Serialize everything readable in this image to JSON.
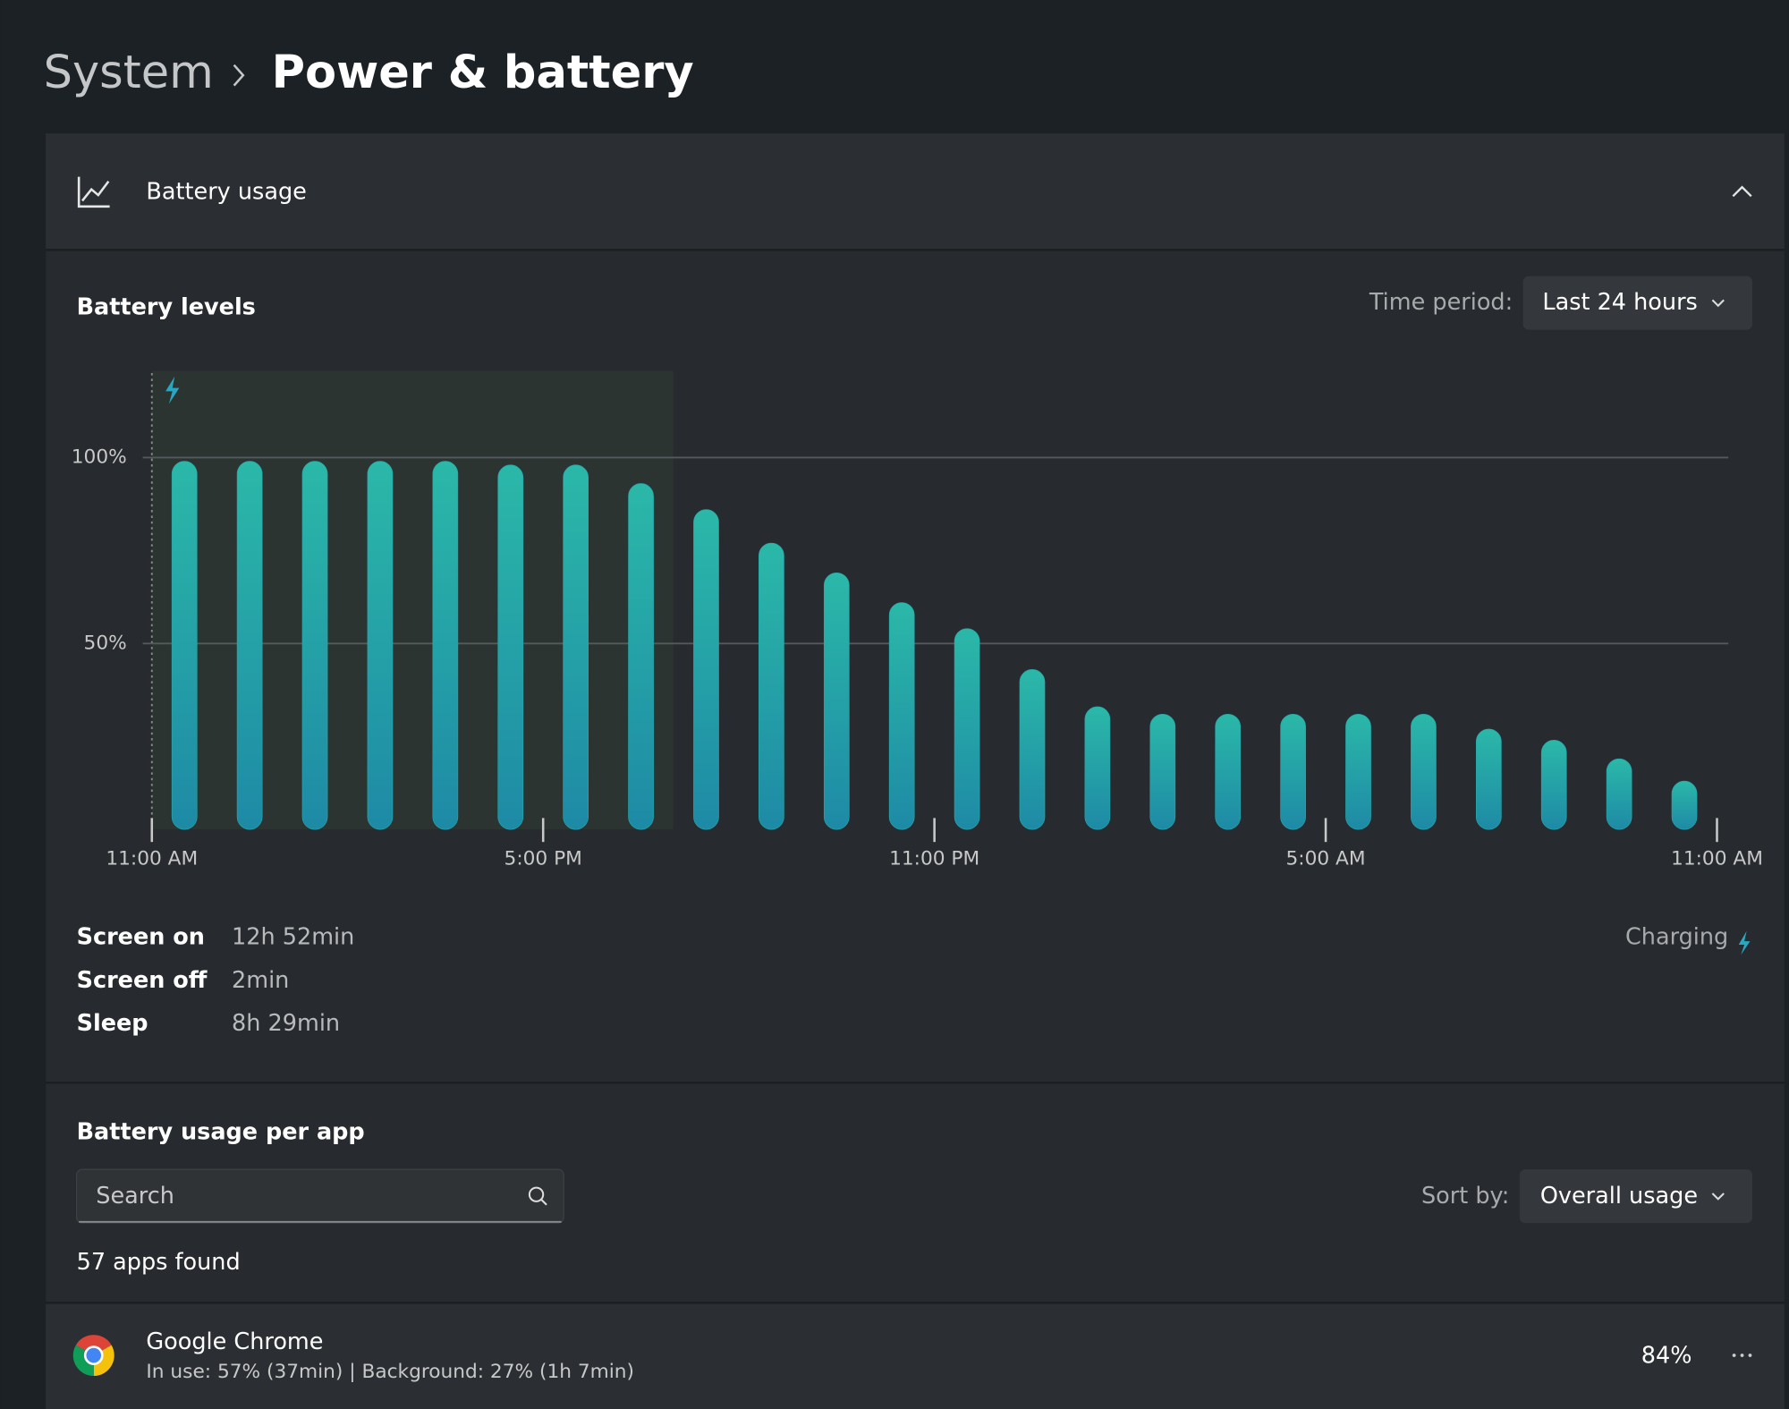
{
  "header": {
    "parent": "System",
    "title": "Power & battery"
  },
  "card": {
    "title": "Battery usage"
  },
  "chart_data": {
    "type": "bar",
    "title": "Battery levels",
    "time_period_label": "Time period:",
    "time_period": "Last 24 hours",
    "values": [
      99,
      99,
      99,
      99,
      99,
      98,
      98,
      93,
      86,
      77,
      69,
      61,
      54,
      43,
      33,
      31,
      31,
      31,
      31,
      31,
      27,
      24,
      19,
      13
    ],
    "color": "#24a8aa",
    "ylim": [
      0,
      123
    ],
    "yticks": [
      {
        "value": 50,
        "label": "50%"
      },
      {
        "value": 100,
        "label": "100%"
      }
    ],
    "xticks": [
      "11:00 AM",
      "5:00 PM",
      "11:00 PM",
      "5:00 AM",
      "11:00 AM"
    ],
    "grid": true
  },
  "stats": [
    {
      "label": "Screen on",
      "value": "12h 52min"
    },
    {
      "label": "Screen off",
      "value": "2min"
    },
    {
      "label": "Sleep",
      "value": "8h 29min"
    }
  ],
  "charging": "Charging",
  "apps": {
    "title": "Battery usage per app",
    "search": "Search",
    "sort_label": "Sort by:",
    "sort_value": "Overall usage",
    "count": "57 apps found",
    "items": [
      {
        "name": "Google Chrome",
        "detail": "In use: 57% (37min) | Background: 27% (1h 7min)",
        "usage": "84%"
      }
    ]
  }
}
